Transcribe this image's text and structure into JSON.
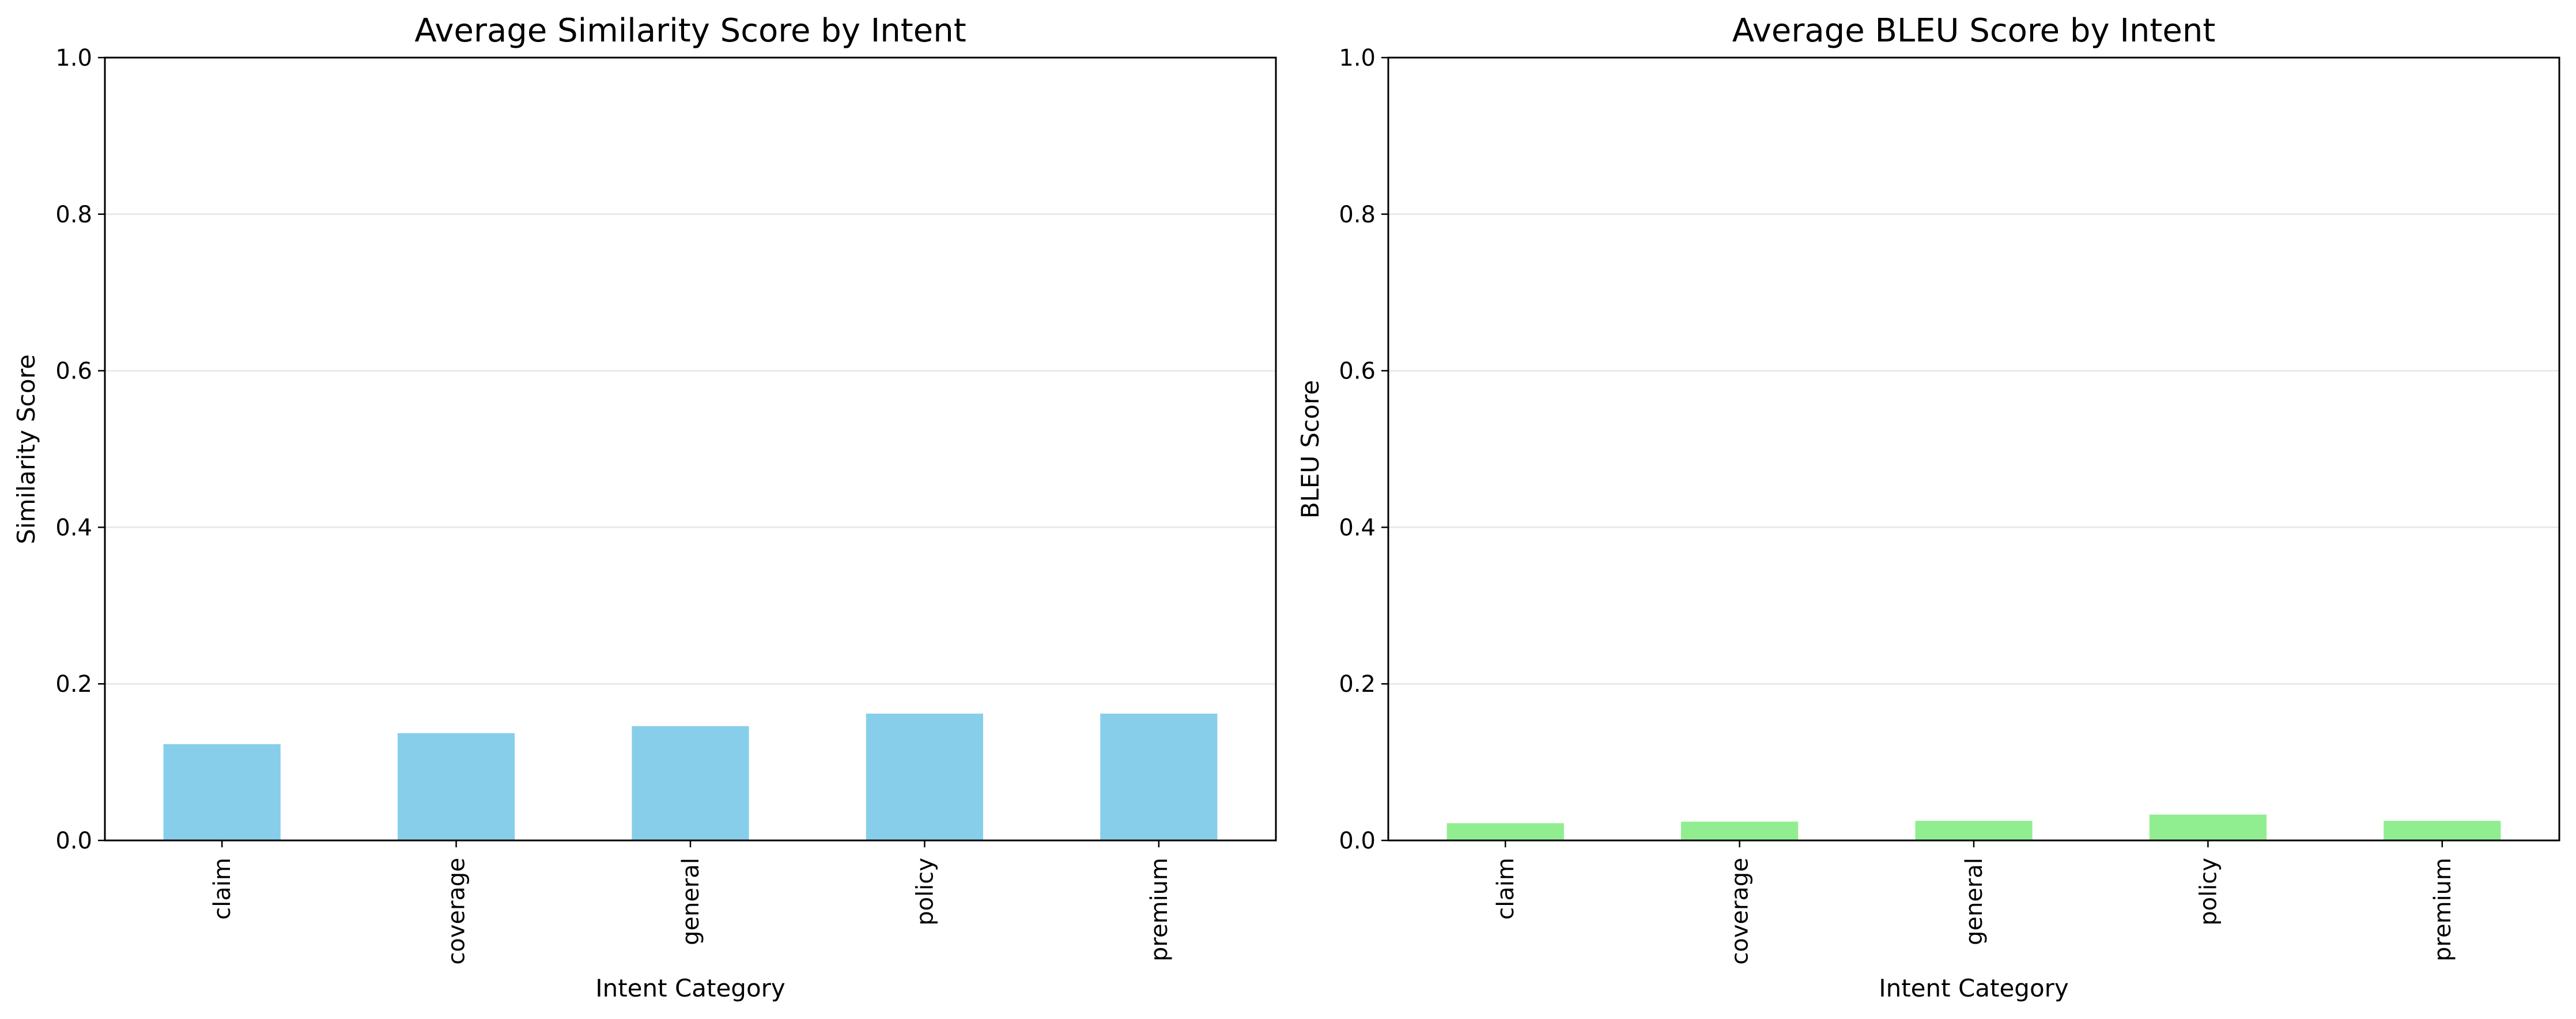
{
  "chart_data": [
    {
      "type": "bar",
      "title": "Average Similarity Score by Intent",
      "xlabel": "Intent Category",
      "ylabel": "Similarity Score",
      "categories": [
        "claim",
        "coverage",
        "general",
        "policy",
        "premium"
      ],
      "values": [
        0.123,
        0.137,
        0.146,
        0.162,
        0.162
      ],
      "ylim": [
        0,
        1
      ],
      "yticks": [
        "0.0",
        "0.2",
        "0.4",
        "0.6",
        "0.8",
        "1.0"
      ],
      "bar_color": "#87ceeb",
      "grid": "y"
    },
    {
      "type": "bar",
      "title": "Average BLEU Score by Intent",
      "xlabel": "Intent Category",
      "ylabel": "BLEU Score",
      "categories": [
        "claim",
        "coverage",
        "general",
        "policy",
        "premium"
      ],
      "values": [
        0.022,
        0.024,
        0.025,
        0.033,
        0.025
      ],
      "ylim": [
        0,
        1
      ],
      "yticks": [
        "0.0",
        "0.2",
        "0.4",
        "0.6",
        "0.8",
        "1.0"
      ],
      "bar_color": "#90ee90",
      "grid": "y"
    }
  ]
}
